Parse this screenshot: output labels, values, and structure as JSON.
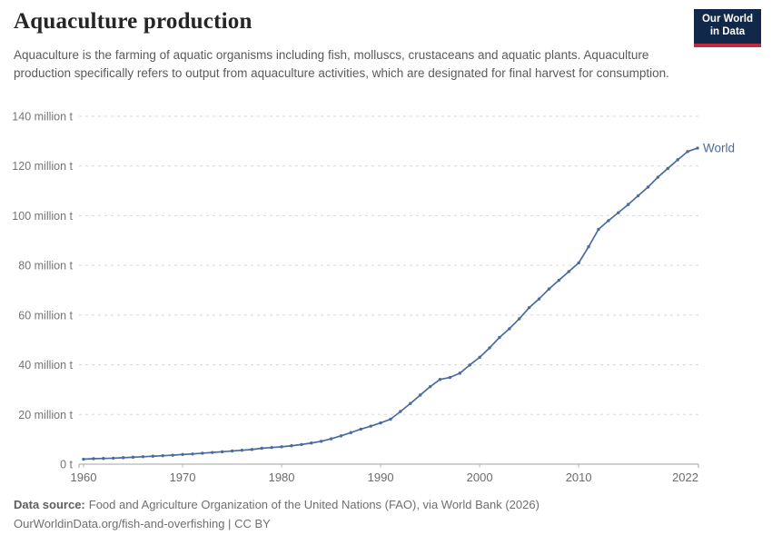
{
  "header": {
    "title": "Aquaculture production",
    "subtitle": "Aquaculture is the farming of aquatic organisms including fish, molluscs, crustaceans and aquatic plants. Aquaculture production specifically refers to output from aquaculture activities, which are designated for final harvest for consumption."
  },
  "logo": {
    "line1": "Our World",
    "line2": "in Data",
    "bg_color": "#12284B",
    "accent_color": "#C22B3F"
  },
  "chart_data": {
    "type": "line",
    "title": "Aquaculture production",
    "unit": "tonnes",
    "xlim": [
      1960,
      2022
    ],
    "ylim": [
      0,
      140
    ],
    "grid": "horizontal dashed",
    "legend_position": "end-of-line",
    "x_ticks": [
      1960,
      1970,
      1980,
      1990,
      2000,
      2010,
      2022
    ],
    "y_ticks": [
      {
        "value": 0,
        "label": "0 t"
      },
      {
        "value": 20,
        "label": "20 million t"
      },
      {
        "value": 40,
        "label": "40 million t"
      },
      {
        "value": 60,
        "label": "60 million t"
      },
      {
        "value": 80,
        "label": "80 million t"
      },
      {
        "value": 100,
        "label": "100 million t"
      },
      {
        "value": 120,
        "label": "120 million t"
      },
      {
        "value": 140,
        "label": "140 million t"
      }
    ],
    "series": [
      {
        "name": "World",
        "color": "#4A6B9D",
        "unit": "million t",
        "points": [
          [
            1960,
            2.0
          ],
          [
            1961,
            2.2
          ],
          [
            1962,
            2.3
          ],
          [
            1963,
            2.4
          ],
          [
            1964,
            2.6
          ],
          [
            1965,
            2.8
          ],
          [
            1966,
            3.0
          ],
          [
            1967,
            3.2
          ],
          [
            1968,
            3.4
          ],
          [
            1969,
            3.6
          ],
          [
            1970,
            3.9
          ],
          [
            1971,
            4.1
          ],
          [
            1972,
            4.4
          ],
          [
            1973,
            4.7
          ],
          [
            1974,
            5.0
          ],
          [
            1975,
            5.3
          ],
          [
            1976,
            5.6
          ],
          [
            1977,
            5.9
          ],
          [
            1978,
            6.4
          ],
          [
            1979,
            6.7
          ],
          [
            1980,
            7.0
          ],
          [
            1981,
            7.4
          ],
          [
            1982,
            7.9
          ],
          [
            1983,
            8.5
          ],
          [
            1984,
            9.2
          ],
          [
            1985,
            10.2
          ],
          [
            1986,
            11.4
          ],
          [
            1987,
            12.7
          ],
          [
            1988,
            14.1
          ],
          [
            1989,
            15.3
          ],
          [
            1990,
            16.6
          ],
          [
            1991,
            18.1
          ],
          [
            1992,
            21.2
          ],
          [
            1993,
            24.4
          ],
          [
            1994,
            27.8
          ],
          [
            1995,
            31.2
          ],
          [
            1996,
            34.1
          ],
          [
            1997,
            34.9
          ],
          [
            1998,
            36.6
          ],
          [
            1999,
            39.9
          ],
          [
            2000,
            43.0
          ],
          [
            2001,
            46.8
          ],
          [
            2002,
            51.0
          ],
          [
            2003,
            54.5
          ],
          [
            2004,
            58.5
          ],
          [
            2005,
            63.0
          ],
          [
            2006,
            66.5
          ],
          [
            2007,
            70.5
          ],
          [
            2008,
            74.0
          ],
          [
            2009,
            77.5
          ],
          [
            2010,
            81.0
          ],
          [
            2011,
            87.5
          ],
          [
            2012,
            94.5
          ],
          [
            2013,
            98.0
          ],
          [
            2014,
            101.2
          ],
          [
            2015,
            104.5
          ],
          [
            2016,
            108.0
          ],
          [
            2017,
            111.5
          ],
          [
            2018,
            115.5
          ],
          [
            2019,
            119.0
          ],
          [
            2020,
            122.5
          ],
          [
            2021,
            125.8
          ],
          [
            2022,
            127.2
          ]
        ]
      }
    ]
  },
  "footer": {
    "source_label": "Data source:",
    "source_text": "Food and Agriculture Organization of the United Nations (FAO), via World Bank (2026)",
    "link_text": "OurWorldinData.org/fish-and-overfishing",
    "separator": "|",
    "license": "CC BY"
  }
}
